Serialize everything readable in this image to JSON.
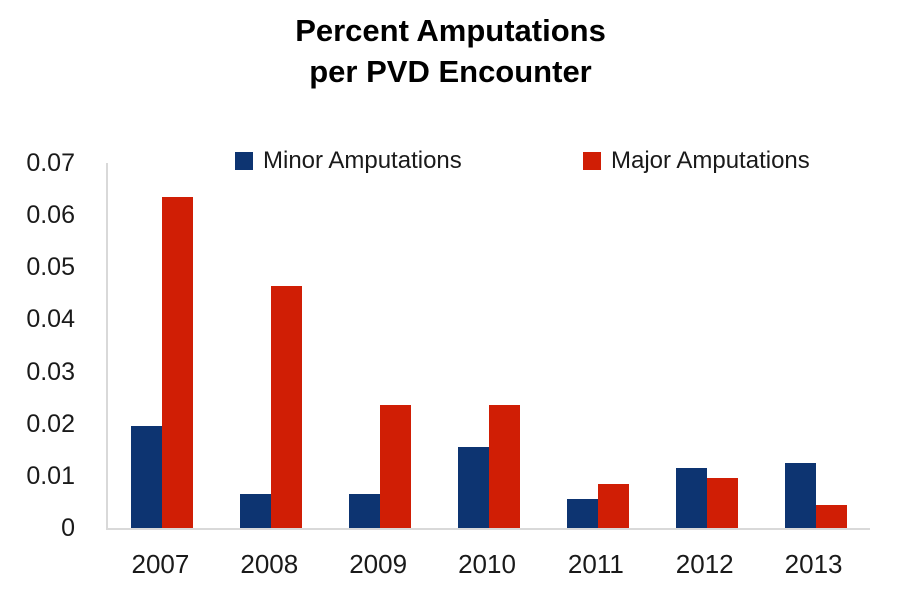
{
  "title": {
    "line1": "Percent Amputations",
    "line2": "per PVD Encounter"
  },
  "legend": [
    {
      "label": "Minor Amputations",
      "color": "#0d3471"
    },
    {
      "label": "Major Amputations",
      "color": "#d01e05"
    }
  ],
  "chart_data": {
    "type": "bar",
    "title": "Percent Amputations per PVD Encounter",
    "categories": [
      "2007",
      "2008",
      "2009",
      "2010",
      "2011",
      "2012",
      "2013"
    ],
    "series": [
      {
        "name": "Minor Amputations",
        "color": "#0d3471",
        "values": [
          0.0195,
          0.0065,
          0.0065,
          0.0155,
          0.0055,
          0.0115,
          0.0125
        ]
      },
      {
        "name": "Major Amputations",
        "color": "#d01e05",
        "values": [
          0.0635,
          0.0465,
          0.0235,
          0.0235,
          0.0085,
          0.0095,
          0.0045
        ]
      }
    ],
    "xlabel": "",
    "ylabel": "",
    "ylim": [
      0,
      0.07
    ],
    "yticks": [
      0,
      0.01,
      0.02,
      0.03,
      0.04,
      0.05,
      0.06,
      0.07
    ],
    "ytick_labels": [
      "0",
      "0.01",
      "0.02",
      "0.03",
      "0.04",
      "0.05",
      "0.06",
      "0.07"
    ],
    "grid": false,
    "legend_position": "top-inside"
  },
  "colors": {
    "axis_line": "#d9d9d9",
    "text": "#1a1a1a",
    "background": "#ffffff"
  }
}
